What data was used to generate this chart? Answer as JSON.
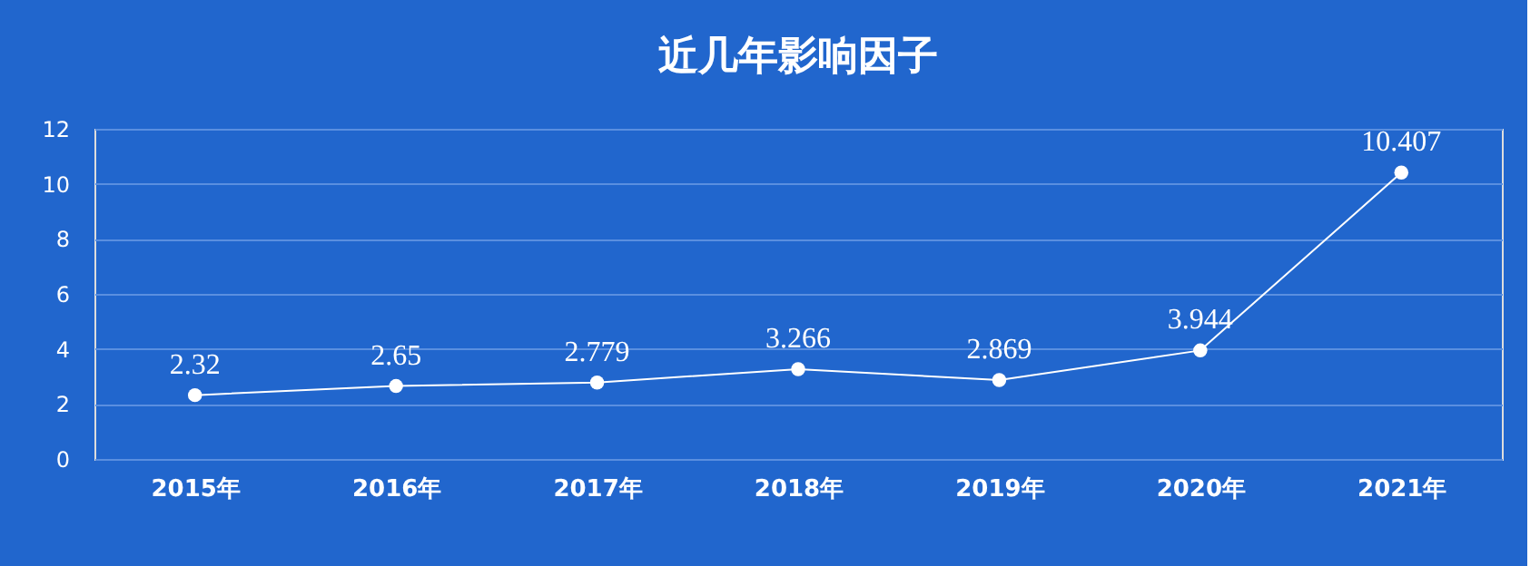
{
  "chart_data": {
    "type": "line",
    "title": "近几年影响因子",
    "categories": [
      "2015年",
      "2016年",
      "2017年",
      "2018年",
      "2019年",
      "2020年",
      "2021年"
    ],
    "values": [
      2.32,
      2.65,
      2.779,
      3.266,
      2.869,
      3.944,
      10.407
    ],
    "color": "#ffffff",
    "ylim": [
      0,
      12
    ],
    "yticks": [
      0,
      2,
      4,
      6,
      8,
      10,
      12
    ],
    "grid": "y",
    "data_labels": true,
    "marker": "circle",
    "line_style": "solid"
  }
}
